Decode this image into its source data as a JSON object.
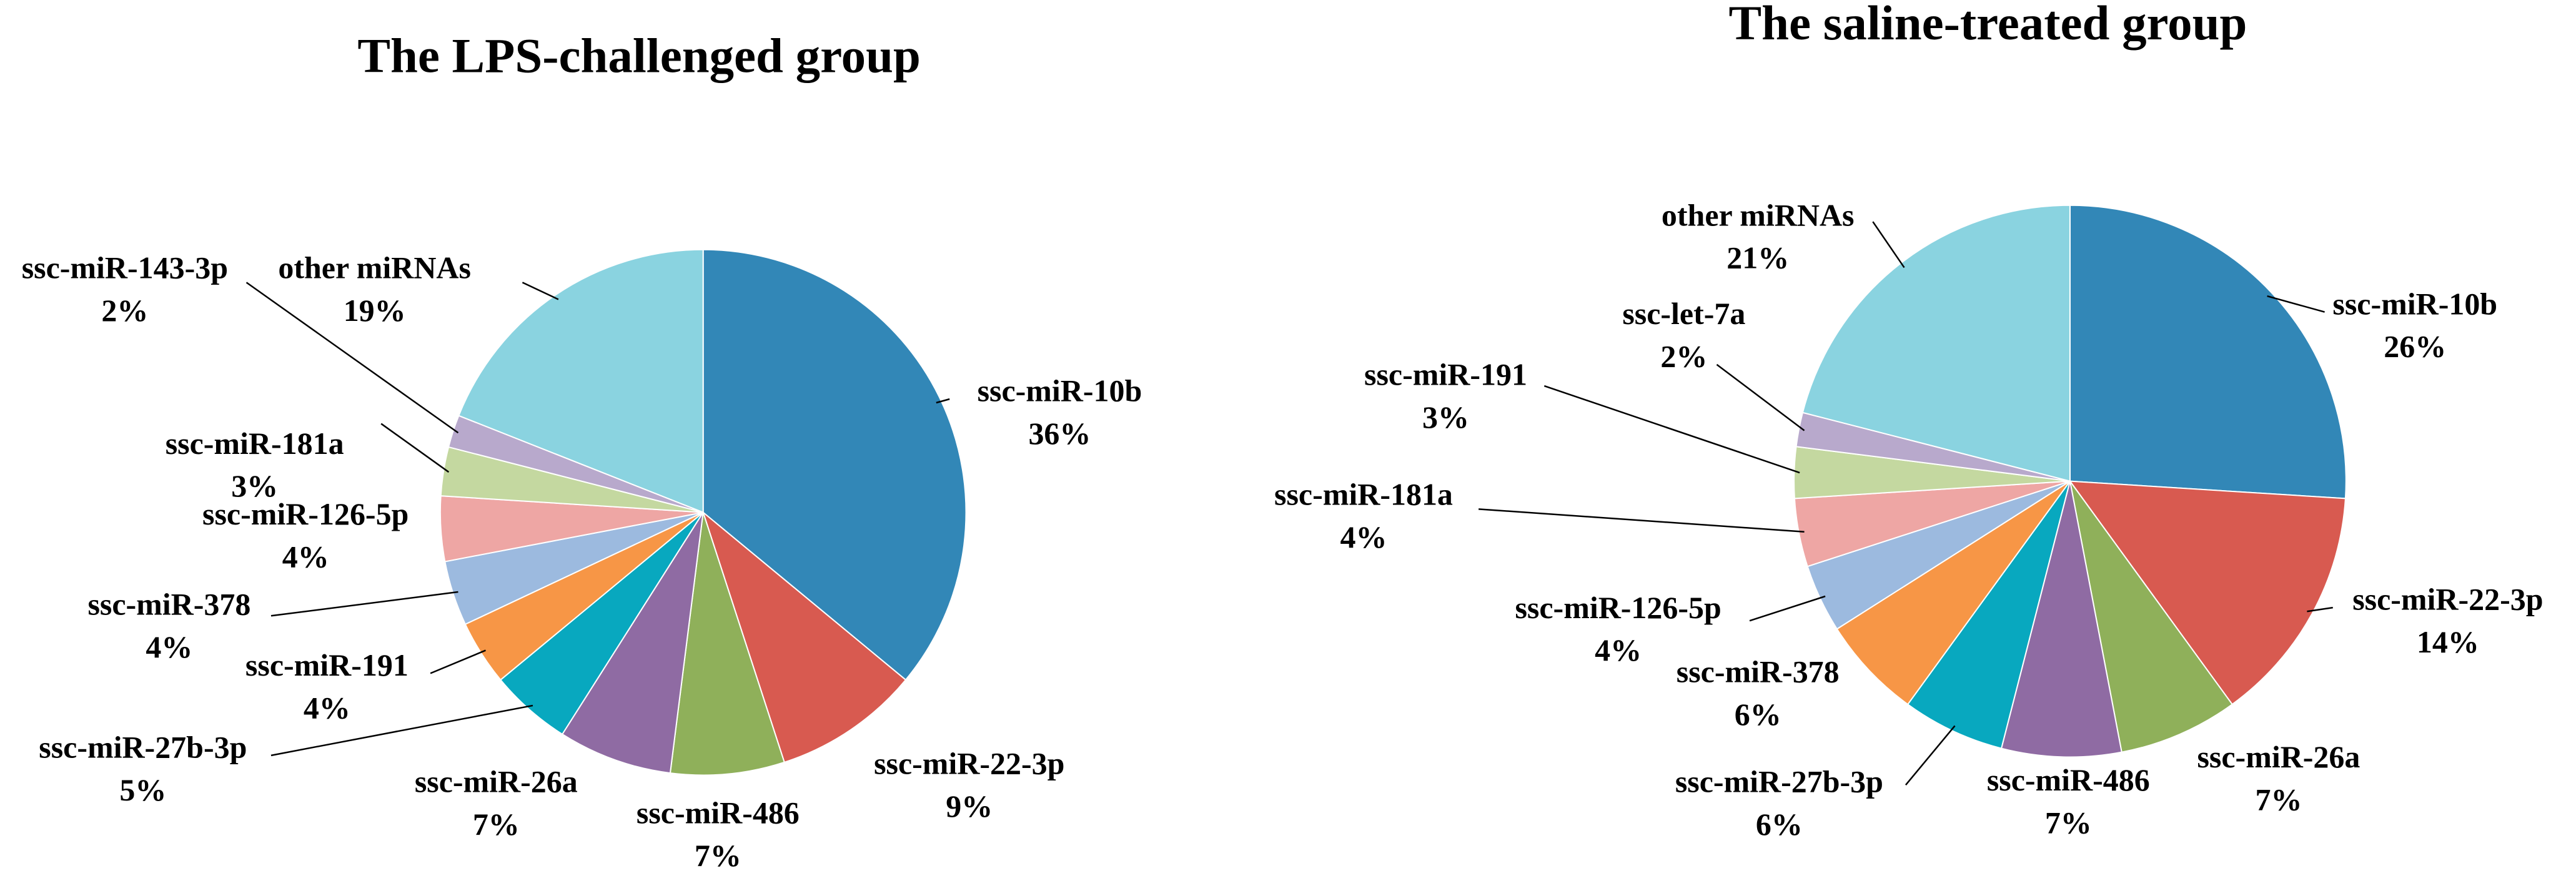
{
  "chart_data": [
    {
      "type": "pie",
      "title": "The LPS-challenged group",
      "categories": [
        "ssc-miR-10b",
        "ssc-miR-22-3p",
        "ssc-miR-486",
        "ssc-miR-26a",
        "ssc-miR-27b-3p",
        "ssc-miR-191",
        "ssc-miR-378",
        "ssc-miR-126-5p",
        "ssc-miR-181a",
        "ssc-miR-143-3p",
        "other miRNAs"
      ],
      "values": [
        36,
        9,
        7,
        7,
        5,
        4,
        4,
        4,
        3,
        2,
        19
      ],
      "value_labels": [
        "36%",
        "9%",
        "7%",
        "7%",
        "5%",
        "4%",
        "4%",
        "4%",
        "3%",
        "2%",
        "19%"
      ],
      "colors": [
        "#3287b7",
        "#d85a50",
        "#8fb05a",
        "#8f6ba3",
        "#08a8bf",
        "#f79646",
        "#9cbadf",
        "#eea6a4",
        "#c4d8a0",
        "#b8a9cc",
        "#8ad3e0"
      ]
    },
    {
      "type": "pie",
      "title": "The saline-treated group",
      "categories": [
        "ssc-miR-10b",
        "ssc-miR-22-3p",
        "ssc-miR-26a",
        "ssc-miR-486",
        "ssc-miR-27b-3p",
        "ssc-miR-378",
        "ssc-miR-126-5p",
        "ssc-miR-181a",
        "ssc-miR-191",
        "ssc-let-7a",
        "other miRNAs"
      ],
      "values": [
        26,
        14,
        7,
        7,
        6,
        6,
        4,
        4,
        3,
        2,
        21
      ],
      "value_labels": [
        "26%",
        "14%",
        "7%",
        "7%",
        "6%",
        "6%",
        "4%",
        "4%",
        "3%",
        "2%",
        "21%"
      ],
      "colors": [
        "#3287b7",
        "#d85a50",
        "#8fb05a",
        "#8f6ba3",
        "#08a8bf",
        "#f79646",
        "#9cbadf",
        "#eea6a4",
        "#c4d8a0",
        "#b8a9cc",
        "#8ad3e0"
      ]
    }
  ]
}
